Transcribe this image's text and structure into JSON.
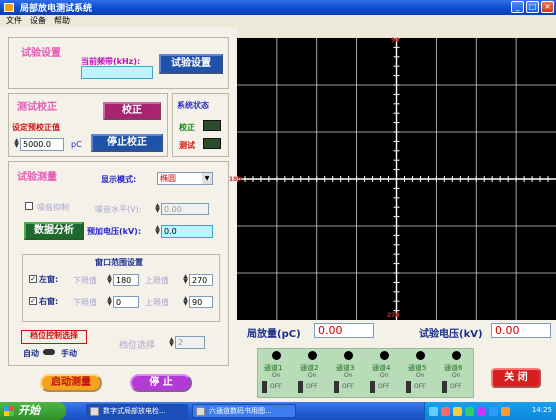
{
  "window": {
    "title": "局部放电测试系统"
  },
  "menu": [
    "文件",
    "设备",
    "帮助"
  ],
  "test_settings": {
    "title": "试验设置",
    "freq_label": "当前频带(kHz):",
    "freq_value": "",
    "button": "试验设置"
  },
  "calibration": {
    "title": "测试校正",
    "preset_label": "设定预校正值",
    "value": "5000.0",
    "unit": "pC",
    "calibrate_button": "校正",
    "stop_button": "停止校正"
  },
  "system_status": {
    "title": "系统状态",
    "items": [
      {
        "label": "校正",
        "color": "#0a8a0a"
      },
      {
        "label": "测试",
        "color": "#d01010"
      }
    ]
  },
  "test_measure": {
    "title": "试验测量",
    "display_mode_label": "显示模式:",
    "display_mode_value": "椭圆",
    "noise_suppress_label": "噪音抑制",
    "noise_level_label": "噪音水平(V):",
    "noise_level_value": "0.00",
    "analyze_button": "数据分析",
    "preset_voltage_label": "预加电压(kV):",
    "preset_voltage_value": "0.0"
  },
  "window_range": {
    "title": "窗口范围设置",
    "lower_label": "下限值",
    "upper_label": "上限值",
    "left": {
      "label": "左窗:",
      "lower": "180",
      "upper": "270"
    },
    "right": {
      "label": "右窗:",
      "lower": "0",
      "upper": "90"
    }
  },
  "gear": {
    "title": "档位控制选择",
    "auto": "自动",
    "manual": "手动",
    "select_label": "档位选择",
    "select_value": "2"
  },
  "actions": {
    "start": "启动测量",
    "stop": "停 止",
    "close": "关 闭"
  },
  "scope": {
    "top": "90",
    "left": "180",
    "bottom": "270"
  },
  "readouts": {
    "pd_label": "局放量(pC)",
    "pd_value": "0.00",
    "voltage_label": "试验电压(kV)",
    "voltage_value": "0.00"
  },
  "channels": [
    {
      "name": "通道1",
      "state": "On",
      "switch": "OFF"
    },
    {
      "name": "通道2",
      "state": "On",
      "switch": "OFF"
    },
    {
      "name": "通道3",
      "state": "On",
      "switch": "OFF"
    },
    {
      "name": "通道4",
      "state": "On",
      "switch": "OFF"
    },
    {
      "name": "通道5",
      "state": "On",
      "switch": "OFF"
    },
    {
      "name": "通道6",
      "state": "On",
      "switch": "OFF"
    }
  ],
  "taskbar": {
    "start": "开始",
    "tasks": [
      "数字式局部放电检...",
      "六通道数码书用图..."
    ],
    "clock": "14:25"
  }
}
